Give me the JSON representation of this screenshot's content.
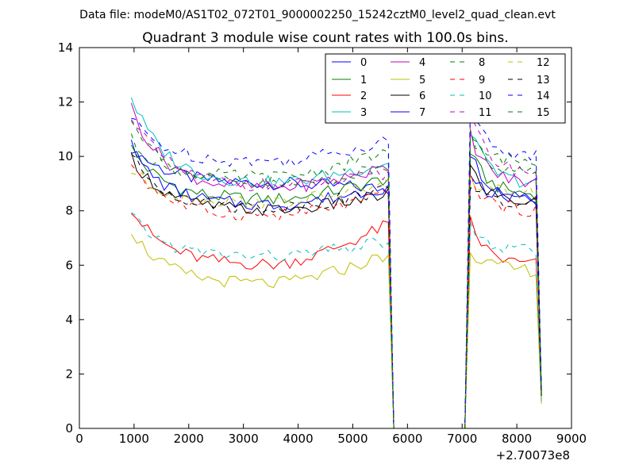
{
  "figure": {
    "supertitle": "Data file: modeM0/AS1T02_072T01_9000002250_15242cztM0_level2_quad_clean.evt"
  },
  "chart_data": {
    "type": "line",
    "title": "Quadrant 3 module wise count rates with 100.0s bins.",
    "xlabel": "",
    "ylabel": "",
    "x_offset_label": "+2.70073e8",
    "xlim": [
      0,
      9000
    ],
    "ylim": [
      0,
      14
    ],
    "xticks": [
      0,
      1000,
      2000,
      3000,
      4000,
      5000,
      6000,
      7000,
      8000,
      9000
    ],
    "yticks": [
      0,
      2,
      4,
      6,
      8,
      10,
      12,
      14
    ],
    "legend_position": "top-right",
    "legend_columns": 4,
    "x_segments": [
      {
        "start": 950,
        "end": 5650,
        "step": 100
      },
      {
        "start": 5750,
        "end": 7050,
        "step": 100
      },
      {
        "start": 7150,
        "end": 8450,
        "step": 100
      }
    ],
    "series": [
      {
        "name": "0",
        "color": "#0000ff",
        "style": "solid",
        "level1": 9.0,
        "end1": 8.8,
        "level2": 8.5,
        "start1": 10.4,
        "start2": 10.2,
        "last": 1.4
      },
      {
        "name": "1",
        "color": "#008000",
        "style": "solid",
        "level1": 8.4,
        "end1": 9.2,
        "level2": 8.6,
        "start1": 10.3,
        "start2": 10.2,
        "last": 1.2
      },
      {
        "name": "2",
        "color": "#ff0000",
        "style": "solid",
        "level1": 6.0,
        "end1": 7.5,
        "level2": 6.0,
        "start1": 8.1,
        "start2": 7.6,
        "last": 1.0
      },
      {
        "name": "3",
        "color": "#00bfbf",
        "style": "solid",
        "level1": 9.0,
        "end1": 9.8,
        "level2": 9.0,
        "start1": 12.2,
        "start2": 11.0,
        "last": 1.3
      },
      {
        "name": "4",
        "color": "#bf00bf",
        "style": "solid",
        "level1": 8.8,
        "end1": 9.6,
        "level2": 9.0,
        "start1": 11.8,
        "start2": 10.8,
        "last": 1.3
      },
      {
        "name": "5",
        "color": "#bfbf00",
        "style": "solid",
        "level1": 5.3,
        "end1": 6.4,
        "level2": 5.8,
        "start1": 7.3,
        "start2": 6.6,
        "last": 0.9
      },
      {
        "name": "6",
        "color": "#000000",
        "style": "solid",
        "level1": 8.0,
        "end1": 8.6,
        "level2": 8.3,
        "start1": 10.0,
        "start2": 9.6,
        "last": 1.2
      },
      {
        "name": "7",
        "color": "#0000ff",
        "style": "solid",
        "level1": 8.2,
        "end1": 8.9,
        "level2": 8.4,
        "start1": 10.3,
        "start2": 9.4,
        "last": 1.3
      },
      {
        "name": "8",
        "color": "#008000",
        "style": "dashed",
        "level1": 9.2,
        "end1": 10.2,
        "level2": 9.8,
        "start1": 10.6,
        "start2": 10.6,
        "last": 1.4
      },
      {
        "name": "9",
        "color": "#ff0000",
        "style": "dashed",
        "level1": 7.8,
        "end1": 8.6,
        "level2": 8.0,
        "start1": 9.8,
        "start2": 9.2,
        "last": 1.3
      },
      {
        "name": "10",
        "color": "#00bfbf",
        "style": "dashed",
        "level1": 6.3,
        "end1": 6.9,
        "level2": 6.5,
        "start1": 7.8,
        "start2": 7.4,
        "last": 1.0
      },
      {
        "name": "11",
        "color": "#bf00bf",
        "style": "dashed",
        "level1": 8.9,
        "end1": 9.3,
        "level2": 9.4,
        "start1": 11.6,
        "start2": 11.6,
        "last": 1.4
      },
      {
        "name": "12",
        "color": "#bfbf00",
        "style": "dashed",
        "level1": 8.3,
        "end1": 9.0,
        "level2": 8.6,
        "start1": 9.5,
        "start2": 9.2,
        "last": 1.2
      },
      {
        "name": "13",
        "color": "#000000",
        "style": "dashed",
        "level1": 8.1,
        "end1": 8.8,
        "level2": 8.2,
        "start1": 10.0,
        "start2": 9.0,
        "last": 1.2
      },
      {
        "name": "14",
        "color": "#0000ff",
        "style": "dashed",
        "level1": 9.8,
        "end1": 10.6,
        "level2": 10.0,
        "start1": 11.4,
        "start2": 11.8,
        "last": 1.5
      },
      {
        "name": "15",
        "color": "#008000",
        "style": "dashed",
        "level1": 8.9,
        "end1": 9.6,
        "level2": 9.4,
        "start1": 11.5,
        "start2": 10.8,
        "last": 1.3
      }
    ]
  }
}
